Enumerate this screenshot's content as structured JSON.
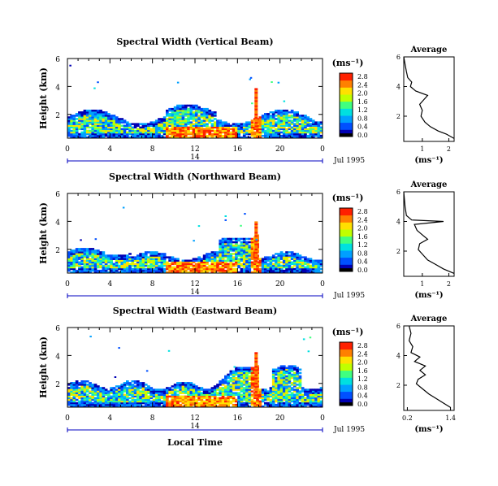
{
  "chart_data": [
    {
      "type": "heatmap",
      "title": "Spectral Width (Vertical Beam)",
      "ylabel": "Height (km)",
      "xlim": [
        0,
        24
      ],
      "ylim": [
        0.3,
        6
      ],
      "x_ticks": [
        "0",
        "4",
        "8",
        "12",
        "16",
        "20",
        "0"
      ],
      "y_ticks": [
        "2",
        "4",
        "6"
      ],
      "date_ticks": [
        "14"
      ],
      "date_label": "Jul 1995",
      "colorbar": {
        "unit": "(ms⁻¹)",
        "ticks": [
          "2.8",
          "2.4",
          "2.0",
          "1.6",
          "1.2",
          "0.8",
          "0.4",
          "0.0"
        ]
      },
      "average": {
        "title": "Average",
        "xlabel": "(ms⁻¹)",
        "xlim": [
          0.3,
          2.2
        ],
        "x_ticks": [
          "1",
          "2"
        ],
        "y_ticks": [
          "2",
          "4",
          "6"
        ],
        "profile": [
          [
            0.5,
            2.2
          ],
          [
            0.8,
            1.9
          ],
          [
            1.0,
            1.6
          ],
          [
            1.3,
            1.3
          ],
          [
            1.6,
            1.1
          ],
          [
            2.0,
            0.95
          ],
          [
            2.4,
            1.0
          ],
          [
            2.8,
            0.9
          ],
          [
            3.1,
            1.05
          ],
          [
            3.4,
            1.2
          ],
          [
            3.7,
            0.75
          ],
          [
            4.0,
            0.55
          ],
          [
            4.3,
            0.6
          ],
          [
            4.6,
            0.45
          ],
          [
            5.0,
            0.4
          ],
          [
            5.5,
            0.35
          ],
          [
            6.0,
            0.3
          ]
        ]
      }
    },
    {
      "type": "heatmap",
      "title": "Spectral Width (Northward Beam)",
      "ylabel": "Height (km)",
      "xlim": [
        0,
        24
      ],
      "ylim": [
        0.3,
        6
      ],
      "x_ticks": [
        "0",
        "4",
        "8",
        "12",
        "16",
        "20",
        "0"
      ],
      "y_ticks": [
        "2",
        "4",
        "6"
      ],
      "date_ticks": [
        "14"
      ],
      "date_label": "Jul 1995",
      "colorbar": {
        "unit": "(ms⁻¹)",
        "ticks": [
          "2.8",
          "2.4",
          "2.0",
          "1.6",
          "1.2",
          "0.8",
          "0.4",
          "0.0"
        ]
      },
      "average": {
        "title": "Average",
        "xlabel": "(ms⁻¹)",
        "xlim": [
          0.3,
          2.2
        ],
        "x_ticks": [
          "1",
          "2"
        ],
        "y_ticks": [
          "2",
          "4",
          "6"
        ],
        "profile": [
          [
            0.5,
            2.2
          ],
          [
            0.8,
            1.8
          ],
          [
            1.1,
            1.5
          ],
          [
            1.4,
            1.2
          ],
          [
            1.8,
            1.0
          ],
          [
            2.1,
            0.85
          ],
          [
            2.5,
            0.9
          ],
          [
            2.8,
            1.2
          ],
          [
            3.1,
            1.0
          ],
          [
            3.4,
            0.8
          ],
          [
            3.8,
            0.7
          ],
          [
            4.0,
            1.8
          ],
          [
            4.1,
            0.6
          ],
          [
            4.4,
            0.4
          ],
          [
            5.0,
            0.35
          ],
          [
            6.0,
            0.3
          ]
        ]
      }
    },
    {
      "type": "heatmap",
      "title": "Spectral Width (Eastward Beam)",
      "ylabel": "Height (km)",
      "xlabel": "Local Time",
      "xlim": [
        0,
        24
      ],
      "ylim": [
        0.3,
        6
      ],
      "x_ticks": [
        "0",
        "4",
        "8",
        "12",
        "16",
        "20",
        "0"
      ],
      "y_ticks": [
        "2",
        "4",
        "6"
      ],
      "date_ticks": [
        "14"
      ],
      "date_label": "Jul 1995",
      "colorbar": {
        "unit": "(ms⁻¹)",
        "ticks": [
          "2.8",
          "2.4",
          "2.0",
          "1.6",
          "1.2",
          "0.8",
          "0.4",
          "0.0"
        ]
      },
      "average": {
        "title": "Average",
        "xlabel": "(ms⁻¹)",
        "xlim": [
          0.1,
          1.5
        ],
        "x_ticks": [
          "0.2",
          "1.4"
        ],
        "y_ticks": [
          "2",
          "4",
          "6"
        ],
        "profile": [
          [
            0.5,
            1.4
          ],
          [
            0.8,
            1.2
          ],
          [
            1.1,
            1.0
          ],
          [
            1.4,
            0.8
          ],
          [
            1.8,
            0.6
          ],
          [
            2.1,
            0.45
          ],
          [
            2.4,
            0.5
          ],
          [
            2.7,
            0.7
          ],
          [
            3.0,
            0.55
          ],
          [
            3.3,
            0.7
          ],
          [
            3.6,
            0.4
          ],
          [
            3.9,
            0.55
          ],
          [
            4.2,
            0.3
          ],
          [
            4.6,
            0.35
          ],
          [
            5.0,
            0.25
          ],
          [
            5.5,
            0.3
          ],
          [
            6.0,
            0.25
          ]
        ]
      }
    }
  ],
  "colors": {
    "palette": [
      "#0000b4",
      "#0050ff",
      "#00a0ff",
      "#00e0e0",
      "#40ff80",
      "#c0ff00",
      "#ffe000",
      "#ff8000",
      "#ff2000"
    ],
    "axis_blue": "#0000c0"
  }
}
